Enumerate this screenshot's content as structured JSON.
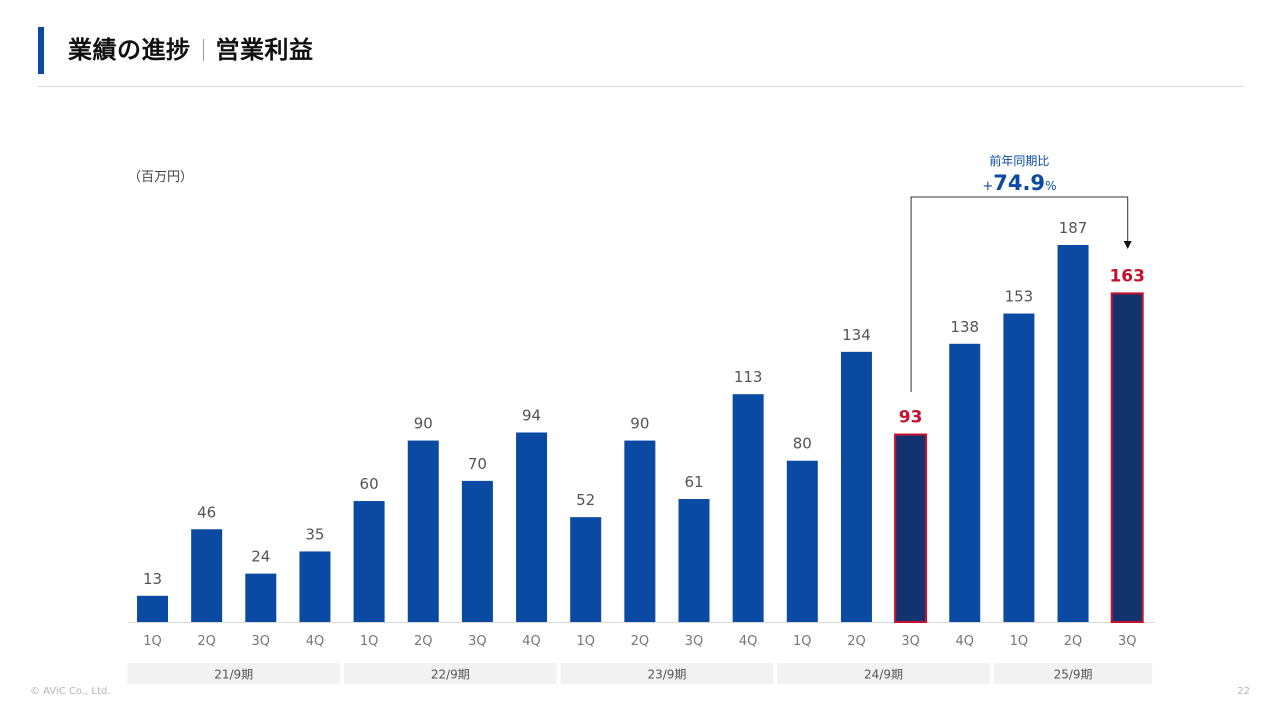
{
  "header": {
    "title_main": "業績の進捗",
    "title_sub": "営業利益",
    "unit": "（百万円）"
  },
  "annotation": {
    "label": "前年同期比",
    "prefix": "+",
    "value": "74.9",
    "suffix": "%"
  },
  "footer": {
    "copyright": "© AViC Co., Ltd.",
    "page": "22"
  },
  "colors": {
    "bar": "#0b4aa3",
    "highlight_fill": "#13336f",
    "highlight_border": "#c8102e",
    "label": "#555555",
    "highlight_label": "#c8102e",
    "group_band": "#f2f2f2"
  },
  "chart_data": {
    "type": "bar",
    "categories": [
      "1Q",
      "2Q",
      "3Q",
      "4Q",
      "1Q",
      "2Q",
      "3Q",
      "4Q",
      "1Q",
      "2Q",
      "3Q",
      "4Q",
      "1Q",
      "2Q",
      "3Q",
      "4Q",
      "1Q",
      "2Q",
      "3Q"
    ],
    "values": [
      13,
      46,
      24,
      35,
      60,
      90,
      70,
      94,
      52,
      90,
      61,
      113,
      80,
      134,
      93,
      138,
      153,
      187,
      163
    ],
    "highlight_indices": [
      14,
      18
    ],
    "groups": [
      {
        "label": "21/9期",
        "count": 4
      },
      {
        "label": "22/9期",
        "count": 4
      },
      {
        "label": "23/9期",
        "count": 4
      },
      {
        "label": "24/9期",
        "count": 4
      },
      {
        "label": "25/9期",
        "count": 3
      }
    ],
    "ylabel": "（百万円）",
    "ylim": [
      0,
      187
    ],
    "grid": false,
    "legend": "none"
  }
}
